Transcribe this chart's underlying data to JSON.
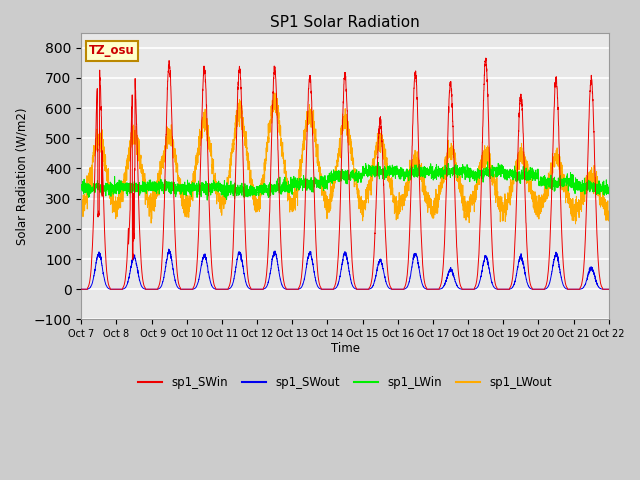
{
  "title": "SP1 Solar Radiation",
  "ylabel": "Solar Radiation (W/m2)",
  "xlabel": "Time",
  "ylim": [
    -100,
    850
  ],
  "yticks": [
    -100,
    0,
    100,
    200,
    300,
    400,
    500,
    600,
    700,
    800
  ],
  "fig_bg": "#cccccc",
  "plot_bg": "#e8e8e8",
  "grid_color": "white",
  "tz_label": "TZ_osu",
  "series_colors": {
    "sp1_SWin": "#ee0000",
    "sp1_SWout": "#0000ee",
    "sp1_LWin": "#00ee00",
    "sp1_LWout": "#ffaa00"
  },
  "num_days": 15,
  "tick_labels": [
    "Oct 7",
    "Oct 8",
    " Oct 9",
    "Oct 10",
    "Oct 11",
    "Oct 12",
    "Oct 13",
    "Oct 14",
    "Oct 15",
    "Oct 16",
    "Oct 17",
    "Oct 18",
    "Oct 19",
    "Oct 20",
    "Oct 21",
    "Oct 22"
  ],
  "sw_peaks": [
    745,
    720,
    748,
    727,
    730,
    730,
    703,
    707,
    560,
    717,
    680,
    760,
    640,
    696,
    692
  ],
  "swout_peaks": [
    118,
    108,
    125,
    112,
    122,
    122,
    120,
    120,
    95,
    118,
    65,
    108,
    108,
    115,
    70
  ],
  "lwout_day_peaks": [
    480,
    490,
    495,
    530,
    570,
    600,
    560,
    540,
    480,
    410,
    440,
    430,
    430,
    415,
    355
  ],
  "lwout_night": 250,
  "lw_base": 355
}
